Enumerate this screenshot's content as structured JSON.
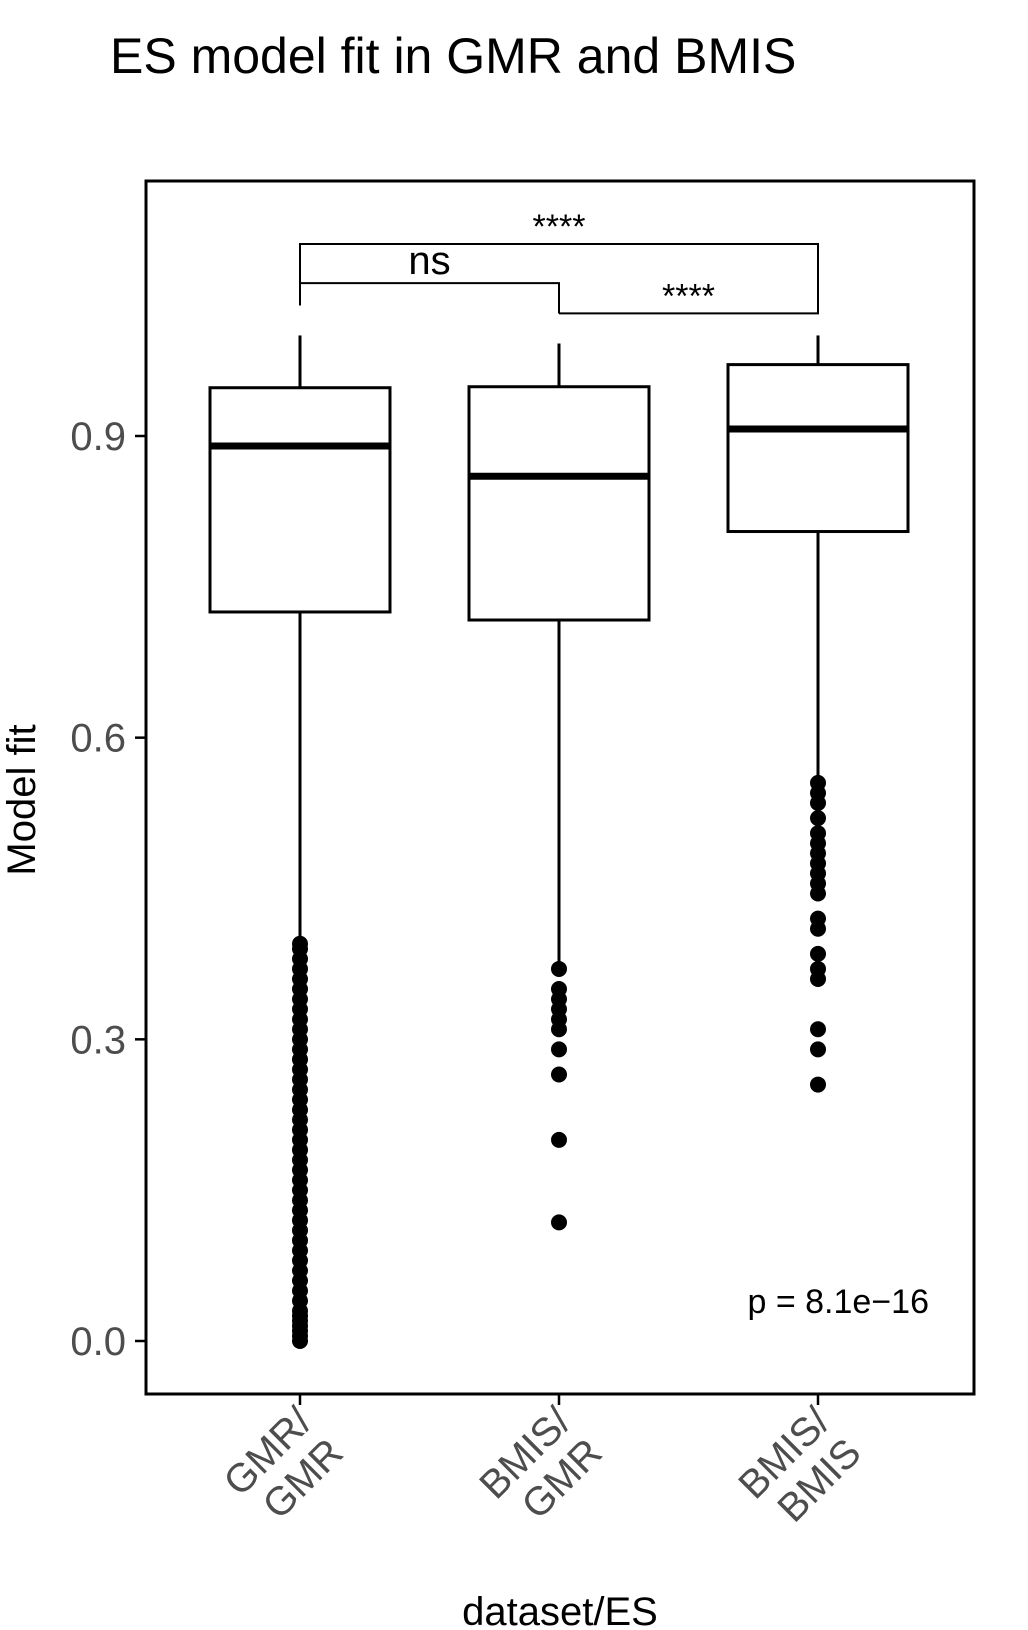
{
  "chart_data": {
    "type": "box",
    "title": "ES model fit in GMR and BMIS",
    "xlabel": "dataset/ES",
    "ylabel": "Model fit",
    "ylim": [
      -0.05,
      1.16
    ],
    "y_ticks": [
      "0.0",
      "0.3",
      "0.6",
      "0.9"
    ],
    "y_tick_values": [
      0.0,
      0.3,
      0.6,
      0.9
    ],
    "grid": false,
    "categories": [
      {
        "line1": "GMR/",
        "line2": "GMR"
      },
      {
        "line1": "BMIS/",
        "line2": "GMR"
      },
      {
        "line1": "BMIS/",
        "line2": "BMIS"
      }
    ],
    "boxes": [
      {
        "whisker_low": 0.4,
        "q1": 0.725,
        "median": 0.89,
        "q3": 0.948,
        "whisker_high": 1.0,
        "outliers": [
          0.0,
          0.005,
          0.01,
          0.015,
          0.02,
          0.025,
          0.03,
          0.04,
          0.05,
          0.06,
          0.07,
          0.08,
          0.09,
          0.1,
          0.11,
          0.12,
          0.13,
          0.14,
          0.15,
          0.16,
          0.17,
          0.18,
          0.19,
          0.2,
          0.21,
          0.22,
          0.23,
          0.24,
          0.25,
          0.26,
          0.27,
          0.28,
          0.29,
          0.3,
          0.31,
          0.32,
          0.33,
          0.34,
          0.35,
          0.36,
          0.37,
          0.38,
          0.39,
          0.395
        ]
      },
      {
        "whisker_low": 0.375,
        "q1": 0.717,
        "median": 0.86,
        "q3": 0.949,
        "whisker_high": 0.992,
        "outliers": [
          0.37,
          0.35,
          0.34,
          0.33,
          0.32,
          0.31,
          0.29,
          0.265,
          0.2,
          0.118
        ]
      },
      {
        "whisker_low": 0.56,
        "q1": 0.805,
        "median": 0.907,
        "q3": 0.971,
        "whisker_high": 1.0,
        "outliers": [
          0.555,
          0.545,
          0.535,
          0.52,
          0.505,
          0.495,
          0.485,
          0.475,
          0.465,
          0.455,
          0.445,
          0.42,
          0.41,
          0.385,
          0.37,
          0.36,
          0.31,
          0.29,
          0.255
        ]
      }
    ],
    "comparisons": [
      {
        "from": 0,
        "to": 1,
        "label": "ns",
        "y": 1.052
      },
      {
        "from": 1,
        "to": 2,
        "label": "****",
        "y": 1.022
      },
      {
        "from": 0,
        "to": 2,
        "label": "****",
        "y": 1.091
      }
    ],
    "annotation": "p = 8.1e−16"
  }
}
